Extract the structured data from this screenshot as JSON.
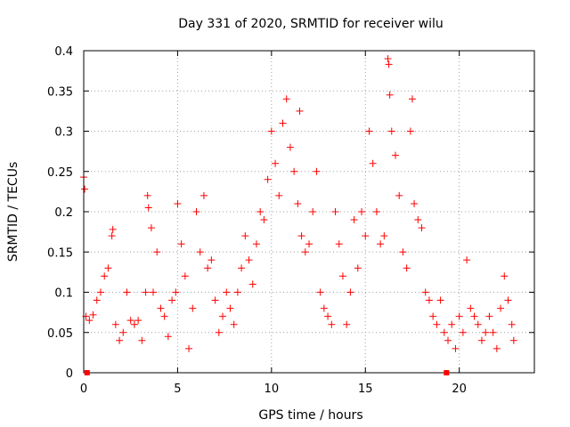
{
  "chart_data": {
    "type": "scatter",
    "title": "Day 331 of 2020, SRMTID for receiver wilu",
    "xlabel": "GPS time / hours",
    "ylabel": "SRMTID / TECUs",
    "xlim": [
      0,
      24
    ],
    "ylim": [
      0,
      0.4
    ],
    "xticks": [
      0,
      5,
      10,
      15,
      20
    ],
    "xtick_labels": [
      "0",
      "5",
      "10",
      "15",
      "20"
    ],
    "yticks": [
      0,
      0.05,
      0.1,
      0.15,
      0.2,
      0.25,
      0.3,
      0.35,
      0.4
    ],
    "ytick_labels": [
      "0",
      "0.05",
      "0.1",
      "0.15",
      "0.2",
      "0.25",
      "0.3",
      "0.35",
      "0.4"
    ],
    "grid": true,
    "marker": "plus",
    "color": "#ff0000",
    "series": [
      {
        "name": "SRMTID",
        "points": [
          [
            0.0,
            0.243
          ],
          [
            0.05,
            0.228
          ],
          [
            0.12,
            0.07
          ],
          [
            0.3,
            0.065
          ],
          [
            0.5,
            0.072
          ],
          [
            0.7,
            0.09
          ],
          [
            0.9,
            0.1
          ],
          [
            1.1,
            0.12
          ],
          [
            1.3,
            0.13
          ],
          [
            1.5,
            0.17
          ],
          [
            1.55,
            0.178
          ],
          [
            1.7,
            0.06
          ],
          [
            1.9,
            0.04
          ],
          [
            2.1,
            0.05
          ],
          [
            2.3,
            0.1
          ],
          [
            2.5,
            0.065
          ],
          [
            2.7,
            0.06
          ],
          [
            2.9,
            0.065
          ],
          [
            3.1,
            0.04
          ],
          [
            3.3,
            0.1
          ],
          [
            3.4,
            0.22
          ],
          [
            3.45,
            0.205
          ],
          [
            3.6,
            0.18
          ],
          [
            3.7,
            0.1
          ],
          [
            3.9,
            0.15
          ],
          [
            4.1,
            0.08
          ],
          [
            4.3,
            0.07
          ],
          [
            4.5,
            0.045
          ],
          [
            4.7,
            0.09
          ],
          [
            4.9,
            0.1
          ],
          [
            5.0,
            0.21
          ],
          [
            5.2,
            0.16
          ],
          [
            5.4,
            0.12
          ],
          [
            5.6,
            0.03
          ],
          [
            5.8,
            0.08
          ],
          [
            6.0,
            0.2
          ],
          [
            6.2,
            0.15
          ],
          [
            6.4,
            0.22
          ],
          [
            6.6,
            0.13
          ],
          [
            6.8,
            0.14
          ],
          [
            7.0,
            0.09
          ],
          [
            7.2,
            0.05
          ],
          [
            7.4,
            0.07
          ],
          [
            7.6,
            0.1
          ],
          [
            7.8,
            0.08
          ],
          [
            8.0,
            0.06
          ],
          [
            8.2,
            0.1
          ],
          [
            8.4,
            0.13
          ],
          [
            8.6,
            0.17
          ],
          [
            8.8,
            0.14
          ],
          [
            9.0,
            0.11
          ],
          [
            9.2,
            0.16
          ],
          [
            9.4,
            0.2
          ],
          [
            9.6,
            0.19
          ],
          [
            9.8,
            0.24
          ],
          [
            10.0,
            0.3
          ],
          [
            10.2,
            0.26
          ],
          [
            10.4,
            0.22
          ],
          [
            10.6,
            0.31
          ],
          [
            10.8,
            0.34
          ],
          [
            11.0,
            0.28
          ],
          [
            11.2,
            0.25
          ],
          [
            11.4,
            0.21
          ],
          [
            11.5,
            0.325
          ],
          [
            11.6,
            0.17
          ],
          [
            11.8,
            0.15
          ],
          [
            12.0,
            0.16
          ],
          [
            12.2,
            0.2
          ],
          [
            12.4,
            0.25
          ],
          [
            12.6,
            0.1
          ],
          [
            12.8,
            0.08
          ],
          [
            13.0,
            0.07
          ],
          [
            13.2,
            0.06
          ],
          [
            13.4,
            0.2
          ],
          [
            13.6,
            0.16
          ],
          [
            13.8,
            0.12
          ],
          [
            14.0,
            0.06
          ],
          [
            14.2,
            0.1
          ],
          [
            14.4,
            0.19
          ],
          [
            14.6,
            0.13
          ],
          [
            14.8,
            0.2
          ],
          [
            15.0,
            0.17
          ],
          [
            15.2,
            0.3
          ],
          [
            15.4,
            0.26
          ],
          [
            15.6,
            0.2
          ],
          [
            15.8,
            0.16
          ],
          [
            16.0,
            0.17
          ],
          [
            16.2,
            0.39
          ],
          [
            16.25,
            0.383
          ],
          [
            16.3,
            0.345
          ],
          [
            16.4,
            0.3
          ],
          [
            16.6,
            0.27
          ],
          [
            16.8,
            0.22
          ],
          [
            17.0,
            0.15
          ],
          [
            17.2,
            0.13
          ],
          [
            17.4,
            0.3
          ],
          [
            17.5,
            0.34
          ],
          [
            17.6,
            0.21
          ],
          [
            17.8,
            0.19
          ],
          [
            18.0,
            0.18
          ],
          [
            18.2,
            0.1
          ],
          [
            18.4,
            0.09
          ],
          [
            18.6,
            0.07
          ],
          [
            18.8,
            0.06
          ],
          [
            19.0,
            0.09
          ],
          [
            19.2,
            0.05
          ],
          [
            19.4,
            0.04
          ],
          [
            19.6,
            0.06
          ],
          [
            19.8,
            0.03
          ],
          [
            20.0,
            0.07
          ],
          [
            20.2,
            0.05
          ],
          [
            20.4,
            0.14
          ],
          [
            20.6,
            0.08
          ],
          [
            20.8,
            0.07
          ],
          [
            21.0,
            0.06
          ],
          [
            21.2,
            0.04
          ],
          [
            21.4,
            0.05
          ],
          [
            21.6,
            0.07
          ],
          [
            21.8,
            0.05
          ],
          [
            22.0,
            0.03
          ],
          [
            22.2,
            0.08
          ],
          [
            22.4,
            0.12
          ],
          [
            22.6,
            0.09
          ],
          [
            22.8,
            0.06
          ],
          [
            22.9,
            0.04
          ]
        ]
      }
    ],
    "gap_markers": [
      0.18,
      19.32
    ]
  }
}
